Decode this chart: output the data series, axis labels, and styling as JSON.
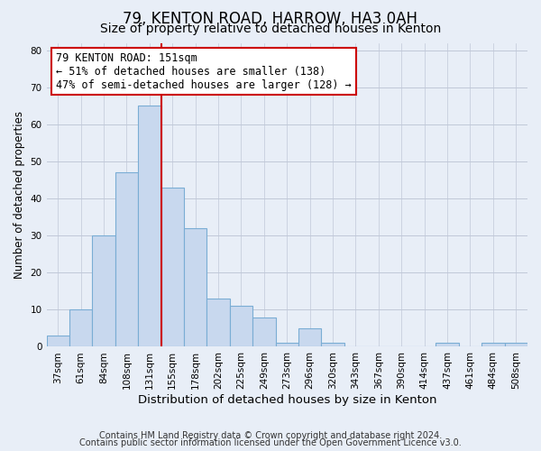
{
  "title": "79, KENTON ROAD, HARROW, HA3 0AH",
  "subtitle": "Size of property relative to detached houses in Kenton",
  "xlabel": "Distribution of detached houses by size in Kenton",
  "ylabel": "Number of detached properties",
  "bar_labels": [
    "37sqm",
    "61sqm",
    "84sqm",
    "108sqm",
    "131sqm",
    "155sqm",
    "178sqm",
    "202sqm",
    "225sqm",
    "249sqm",
    "273sqm",
    "296sqm",
    "320sqm",
    "343sqm",
    "367sqm",
    "390sqm",
    "414sqm",
    "437sqm",
    "461sqm",
    "484sqm",
    "508sqm"
  ],
  "bar_heights": [
    3,
    10,
    30,
    47,
    65,
    43,
    32,
    13,
    11,
    8,
    1,
    5,
    1,
    0,
    0,
    0,
    0,
    1,
    0,
    1,
    1
  ],
  "bar_color": "#c8d8ee",
  "bar_edge_color": "#7aadd4",
  "vline_color": "#cc0000",
  "annotation_text": "79 KENTON ROAD: 151sqm\n← 51% of detached houses are smaller (138)\n47% of semi-detached houses are larger (128) →",
  "annotation_box_color": "#ffffff",
  "annotation_box_edge": "#cc0000",
  "ylim": [
    0,
    82
  ],
  "yticks": [
    0,
    10,
    20,
    30,
    40,
    50,
    60,
    70,
    80
  ],
  "footer1": "Contains HM Land Registry data © Crown copyright and database right 2024.",
  "footer2": "Contains public sector information licensed under the Open Government Licence v3.0.",
  "background_color": "#e8eef7",
  "plot_bg_color": "#e8eef7",
  "grid_color": "#c0c8d8",
  "title_fontsize": 12,
  "subtitle_fontsize": 10,
  "xlabel_fontsize": 9.5,
  "ylabel_fontsize": 8.5,
  "tick_fontsize": 7.5,
  "footer_fontsize": 7,
  "annotation_fontsize": 8.5
}
